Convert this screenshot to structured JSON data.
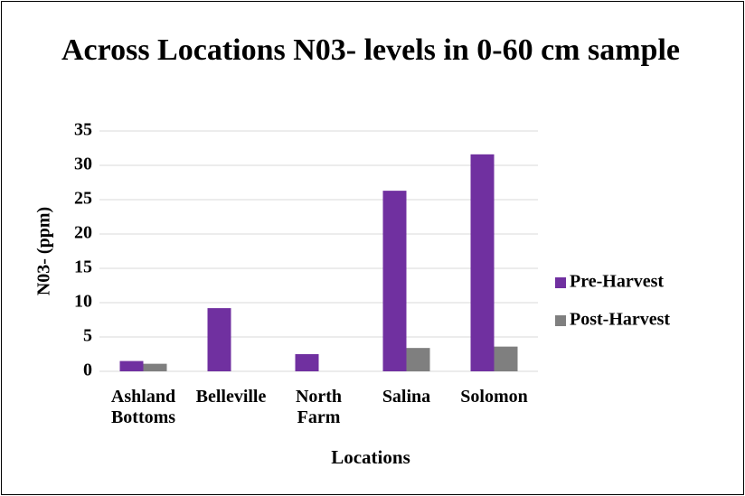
{
  "chart_data": {
    "type": "bar",
    "title": "Across Locations N03- levels in 0-60 cm sample",
    "x_label": "Locations",
    "y_label": "N03- (ppm)",
    "categories": [
      "Ashland Bottoms",
      "Belleville",
      "North Farm",
      "Salina",
      "Solomon"
    ],
    "series": [
      {
        "name": "Pre-Harvest",
        "color": "#7030a0",
        "values": [
          1.5,
          9.2,
          2.5,
          26.3,
          31.6
        ]
      },
      {
        "name": "Post-Harvest",
        "color": "#7f7f7f",
        "values": [
          1.1,
          null,
          null,
          3.4,
          3.6
        ]
      }
    ],
    "ylim": [
      0,
      35
    ],
    "yticks": [
      0,
      5,
      10,
      15,
      20,
      25,
      30,
      35
    ],
    "grid": true,
    "legend": "right"
  }
}
